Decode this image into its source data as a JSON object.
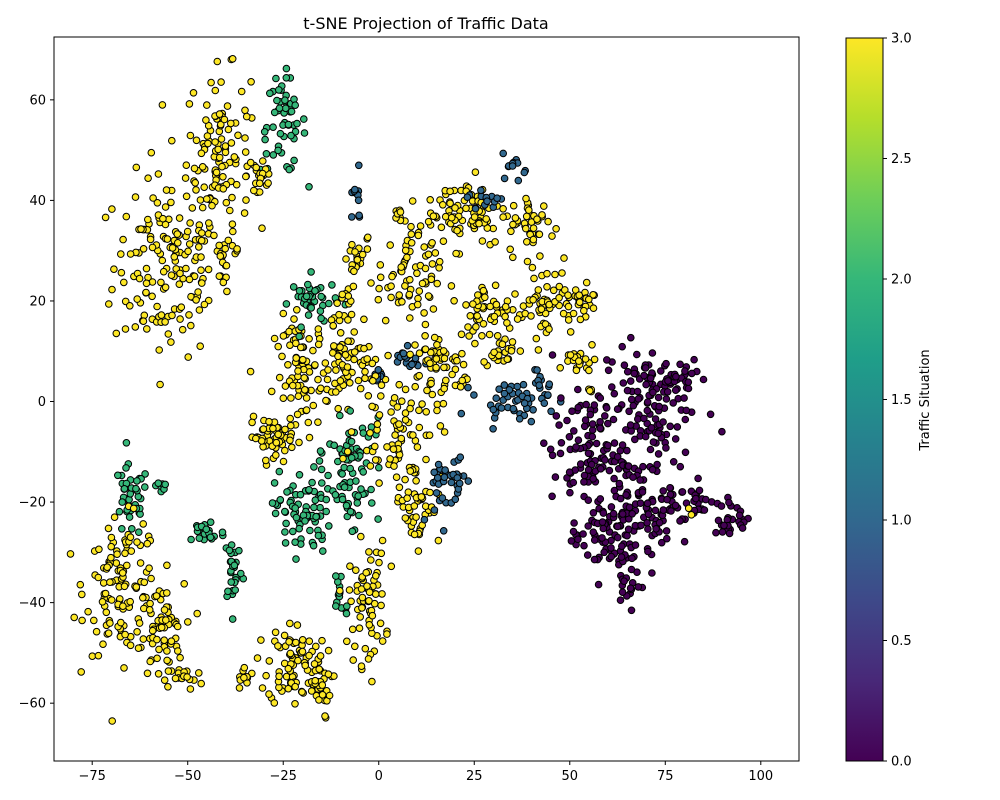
{
  "chart_data": {
    "type": "scatter",
    "title": "t-SNE Projection of Traffic Data",
    "xlabel": "",
    "ylabel": "",
    "xlim": [
      -85,
      110
    ],
    "ylim": [
      -71.5,
      72.5
    ],
    "x_ticks": [
      -75,
      -50,
      -25,
      0,
      25,
      50,
      75,
      100
    ],
    "y_ticks": [
      -60,
      -40,
      -20,
      0,
      20,
      40,
      60
    ],
    "grid": false,
    "marker_edge_color": "#000000",
    "colormap": "viridis",
    "colorbar": {
      "label": "Traffic Situation",
      "range": [
        0.0,
        3.0
      ],
      "ticks": [
        "0.0",
        "0.5",
        "1.0",
        "1.5",
        "2.0",
        "2.5",
        "3.0"
      ],
      "colors": [
        "#440154",
        "#482878",
        "#3e4989",
        "#31688e",
        "#26828e",
        "#1f9e89",
        "#35b779",
        "#6ece58",
        "#b5de2b",
        "#fde725"
      ]
    },
    "class_colors": {
      "0": "#440154",
      "1": "#31688e",
      "2": "#35b779",
      "3": "#fde725"
    },
    "clusters": [
      {
        "value": 3,
        "cx": -55,
        "cy": 27,
        "rx": 12,
        "ry": 15,
        "n": 160
      },
      {
        "value": 3,
        "cx": -42,
        "cy": 50,
        "rx": 7,
        "ry": 13,
        "n": 110
      },
      {
        "value": 3,
        "cx": -40,
        "cy": 30,
        "rx": 3,
        "ry": 4,
        "n": 20
      },
      {
        "value": 2,
        "cx": -25,
        "cy": 55,
        "rx": 5,
        "ry": 8,
        "n": 55
      },
      {
        "value": 3,
        "cx": -31,
        "cy": 45,
        "rx": 3,
        "ry": 5,
        "n": 20
      },
      {
        "value": 2,
        "cx": -65,
        "cy": -20,
        "rx": 4,
        "ry": 6,
        "n": 40
      },
      {
        "value": 2,
        "cx": -57,
        "cy": -17,
        "rx": 1.5,
        "ry": 2,
        "n": 8
      },
      {
        "value": 3,
        "cx": -67,
        "cy": -37,
        "rx": 8,
        "ry": 11,
        "n": 120
      },
      {
        "value": 3,
        "cx": -57,
        "cy": -46,
        "rx": 5,
        "ry": 8,
        "n": 60
      },
      {
        "value": 3,
        "cx": -51,
        "cy": -55,
        "rx": 4,
        "ry": 2,
        "n": 18
      },
      {
        "value": 2,
        "cx": -45,
        "cy": -26,
        "rx": 4,
        "ry": 2.5,
        "n": 25
      },
      {
        "value": 2,
        "cx": -38,
        "cy": -33,
        "rx": 2,
        "ry": 6,
        "n": 28
      },
      {
        "value": 3,
        "cx": -35,
        "cy": -55,
        "rx": 2,
        "ry": 2,
        "n": 10
      },
      {
        "value": 3,
        "cx": -23,
        "cy": -52,
        "rx": 5,
        "ry": 7,
        "n": 70
      },
      {
        "value": 3,
        "cx": -16,
        "cy": -56,
        "rx": 3,
        "ry": 6,
        "n": 40
      },
      {
        "value": 2,
        "cx": -20,
        "cy": -22,
        "rx": 6,
        "ry": 7,
        "n": 80
      },
      {
        "value": 2,
        "cx": -7,
        "cy": -20,
        "rx": 5,
        "ry": 6,
        "n": 35
      },
      {
        "value": 2,
        "cx": -10,
        "cy": -38,
        "rx": 2,
        "ry": 5,
        "n": 15
      },
      {
        "value": 3,
        "cx": -3,
        "cy": -40,
        "rx": 4,
        "ry": 10,
        "n": 70
      },
      {
        "value": 3,
        "cx": -28,
        "cy": -7,
        "rx": 5,
        "ry": 3,
        "n": 50
      },
      {
        "value": 3,
        "cx": -20,
        "cy": 5,
        "rx": 6,
        "ry": 10,
        "n": 90
      },
      {
        "value": 2,
        "cx": -17,
        "cy": 20,
        "rx": 5,
        "ry": 4,
        "n": 40
      },
      {
        "value": 3,
        "cx": -10,
        "cy": 18,
        "rx": 3,
        "ry": 5,
        "n": 20
      },
      {
        "value": 3,
        "cx": -8,
        "cy": 7,
        "rx": 6,
        "ry": 6,
        "n": 60
      },
      {
        "value": 2,
        "cx": -6,
        "cy": -10,
        "rx": 6,
        "ry": 5,
        "n": 45
      },
      {
        "value": 1,
        "cx": -6,
        "cy": 40,
        "rx": 1.5,
        "ry": 4,
        "n": 12
      },
      {
        "value": 3,
        "cx": -6,
        "cy": 28,
        "rx": 3,
        "ry": 4,
        "n": 20
      },
      {
        "value": 1,
        "cx": 7,
        "cy": 8,
        "rx": 3,
        "ry": 2,
        "n": 18
      },
      {
        "value": 1,
        "cx": 0,
        "cy": 5,
        "rx": 1.5,
        "ry": 2,
        "n": 8
      },
      {
        "value": 3,
        "cx": 5,
        "cy": -5,
        "rx": 9,
        "ry": 9,
        "n": 80
      },
      {
        "value": 3,
        "cx": 10,
        "cy": -20,
        "rx": 5,
        "ry": 7,
        "n": 50
      },
      {
        "value": 1,
        "cx": 15,
        "cy": -18,
        "rx": 2,
        "ry": 6,
        "n": 20
      },
      {
        "value": 1,
        "cx": 20,
        "cy": -15,
        "rx": 2,
        "ry": 5,
        "n": 20
      },
      {
        "value": 3,
        "cx": 8,
        "cy": 25,
        "rx": 7,
        "ry": 8,
        "n": 70
      },
      {
        "value": 3,
        "cx": 5,
        "cy": 36,
        "rx": 1.5,
        "ry": 2,
        "n": 8
      },
      {
        "value": 3,
        "cx": 14,
        "cy": 10,
        "rx": 4,
        "ry": 6,
        "n": 40
      },
      {
        "value": 3,
        "cx": 20,
        "cy": 5,
        "rx": 3,
        "ry": 4,
        "n": 20
      },
      {
        "value": 3,
        "cx": 23,
        "cy": 38,
        "rx": 9,
        "ry": 6,
        "n": 80
      },
      {
        "value": 1,
        "cx": 28,
        "cy": 40,
        "rx": 4,
        "ry": 2,
        "n": 15
      },
      {
        "value": 1,
        "cx": 36,
        "cy": 47,
        "rx": 3,
        "ry": 2,
        "n": 12
      },
      {
        "value": 3,
        "cx": 40,
        "cy": 35,
        "rx": 5,
        "ry": 5,
        "n": 40
      },
      {
        "value": 3,
        "cx": 30,
        "cy": 18,
        "rx": 8,
        "ry": 5,
        "n": 60
      },
      {
        "value": 3,
        "cx": 44,
        "cy": 20,
        "rx": 6,
        "ry": 6,
        "n": 50
      },
      {
        "value": 3,
        "cx": 53,
        "cy": 20,
        "rx": 4,
        "ry": 4,
        "n": 25
      },
      {
        "value": 3,
        "cx": 32,
        "cy": 10,
        "rx": 4,
        "ry": 2,
        "n": 20
      },
      {
        "value": 1,
        "cx": 35,
        "cy": 0,
        "rx": 8,
        "ry": 3,
        "n": 45
      },
      {
        "value": 1,
        "cx": 43,
        "cy": 4,
        "rx": 2,
        "ry": 3,
        "n": 12
      },
      {
        "value": 3,
        "cx": 52,
        "cy": 8,
        "rx": 4,
        "ry": 2,
        "n": 20
      },
      {
        "value": 0,
        "cx": 55,
        "cy": -10,
        "rx": 8,
        "ry": 9,
        "n": 100
      },
      {
        "value": 0,
        "cx": 70,
        "cy": 0,
        "rx": 10,
        "ry": 10,
        "n": 130
      },
      {
        "value": 0,
        "cx": 60,
        "cy": -27,
        "rx": 8,
        "ry": 7,
        "n": 90
      },
      {
        "value": 0,
        "cx": 72,
        "cy": -20,
        "rx": 8,
        "ry": 8,
        "n": 90
      },
      {
        "value": 0,
        "cx": 66,
        "cy": -36,
        "rx": 3,
        "ry": 3,
        "n": 15
      },
      {
        "value": 0,
        "cx": 84,
        "cy": -20,
        "rx": 3,
        "ry": 2,
        "n": 18
      },
      {
        "value": 0,
        "cx": 93,
        "cy": -23,
        "rx": 5,
        "ry": 3,
        "n": 25
      },
      {
        "value": 0,
        "cx": 80,
        "cy": 5,
        "rx": 4,
        "ry": 3,
        "n": 15
      },
      {
        "value": 3,
        "cx": 55,
        "cy": 2,
        "rx": 1.5,
        "ry": 1.5,
        "n": 4
      },
      {
        "value": 3,
        "cx": 82,
        "cy": -22,
        "rx": 1,
        "ry": 1,
        "n": 2
      }
    ]
  }
}
